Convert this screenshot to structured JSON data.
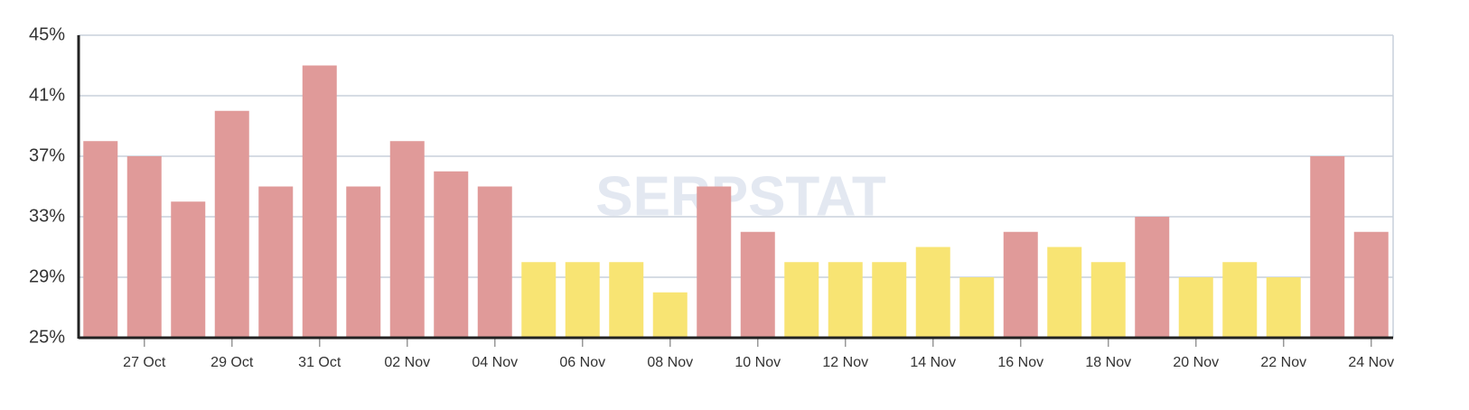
{
  "chart_data": {
    "type": "bar",
    "watermark": "SERPSTAT",
    "categories": [
      null,
      "27 Oct",
      null,
      "29 Oct",
      null,
      "31 Oct",
      null,
      "02 Nov",
      null,
      "04 Nov",
      null,
      "06 Nov",
      null,
      "08 Nov",
      null,
      "10 Nov",
      null,
      "12 Nov",
      null,
      "14 Nov",
      null,
      "16 Nov",
      null,
      "18 Nov",
      null,
      "20 Nov",
      null,
      "22 Nov",
      null,
      "24 Nov"
    ],
    "values": [
      38,
      37,
      34,
      40,
      35,
      43,
      35,
      38,
      36,
      35,
      30,
      30,
      30,
      28,
      35,
      32,
      30,
      30,
      30,
      31,
      29,
      32,
      31,
      30,
      33,
      29,
      30,
      29,
      37,
      32
    ],
    "colors": [
      "#e09a99",
      "#e09a99",
      "#e09a99",
      "#e09a99",
      "#e09a99",
      "#e09a99",
      "#e09a99",
      "#e09a99",
      "#e09a99",
      "#e09a99",
      "#f8e473",
      "#f8e473",
      "#f8e473",
      "#f8e473",
      "#e09a99",
      "#e09a99",
      "#f8e473",
      "#f8e473",
      "#f8e473",
      "#f8e473",
      "#f8e473",
      "#e09a99",
      "#f8e473",
      "#f8e473",
      "#e09a99",
      "#f8e473",
      "#f8e473",
      "#f8e473",
      "#e09a99",
      "#e09a99"
    ],
    "ylim": [
      25,
      45
    ],
    "yticks": [
      {
        "value": 25,
        "label": "25%"
      },
      {
        "value": 29,
        "label": "29%"
      },
      {
        "value": 33,
        "label": "33%"
      },
      {
        "value": 37,
        "label": "37%"
      },
      {
        "value": 41,
        "label": "41%"
      },
      {
        "value": 45,
        "label": "45%"
      }
    ],
    "grid": true
  }
}
